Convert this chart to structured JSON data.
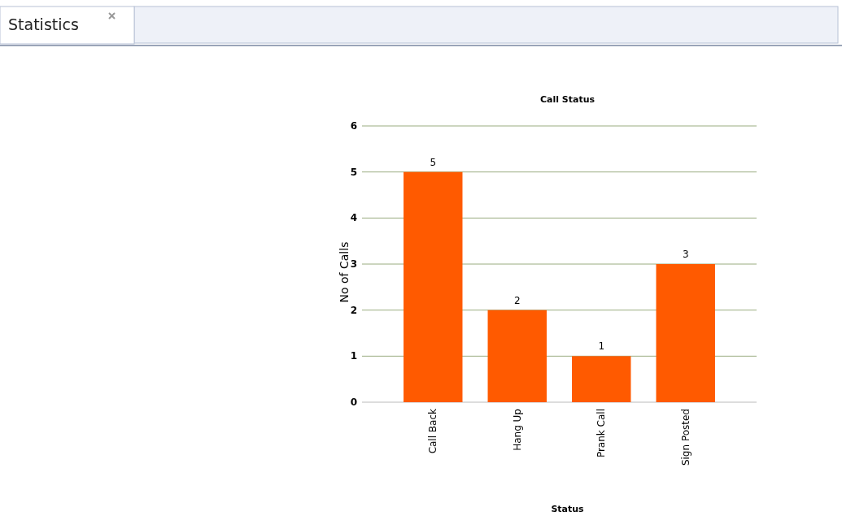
{
  "chart_data": {
    "type": "bar",
    "title": "Call Status",
    "xlabel": "Status",
    "ylabel": "No of Calls",
    "categories": [
      "Call Back",
      "Hang Up",
      "Prank Call",
      "Sign Posted"
    ],
    "values": [
      5,
      2,
      1,
      3
    ],
    "color": "#ff5a00",
    "ylim": [
      0,
      6
    ],
    "yticks": [
      0,
      1,
      2,
      3,
      4,
      5,
      6
    ],
    "grid": "y",
    "data_labels": true,
    "annotations": [
      "Statistics"
    ]
  }
}
